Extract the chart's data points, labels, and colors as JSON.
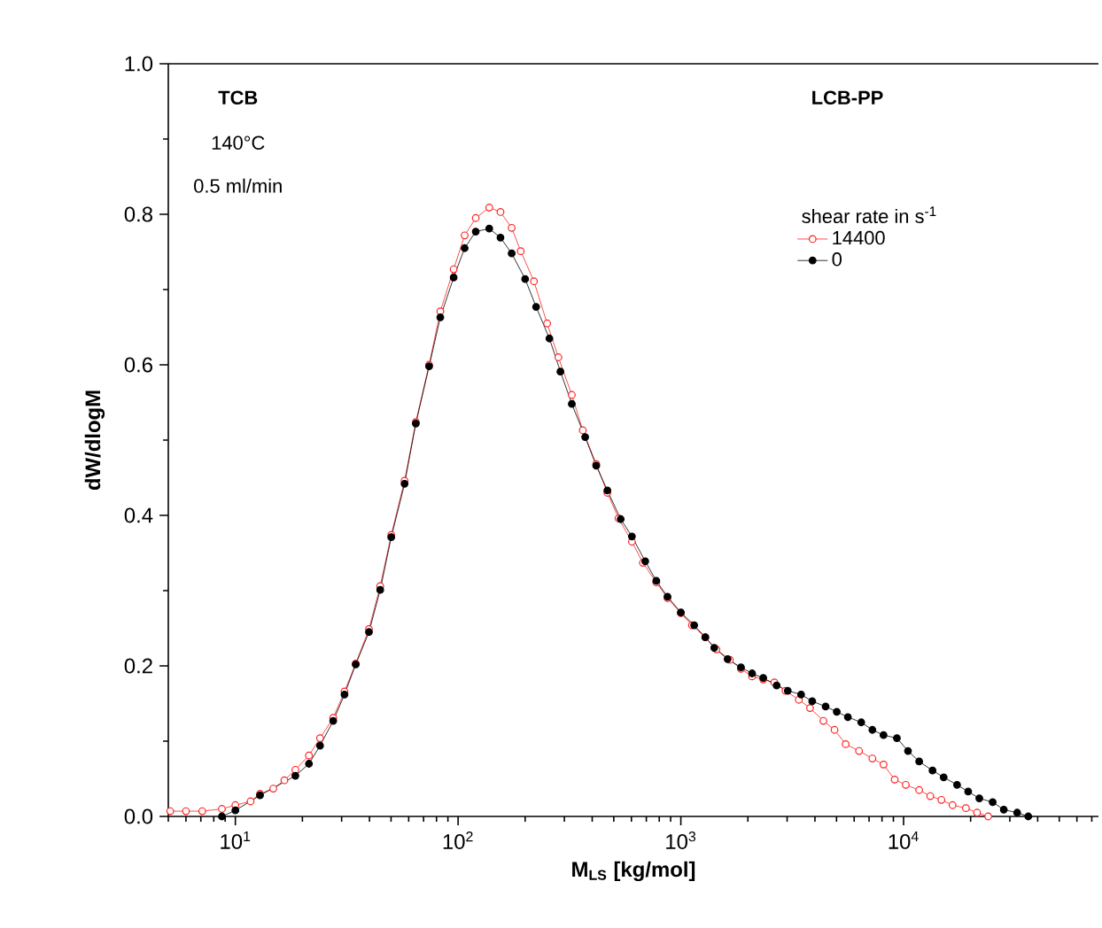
{
  "chart_data": {
    "type": "line",
    "xlabel": "M$_{LS}$ [kg/mol]",
    "ylabel": "dW/dlogM",
    "legend_title": "shear rate in s$^{-1}$",
    "log": "x",
    "marker": "circle",
    "line_style": "solid",
    "legend": "top right",
    "xlim": [
      5,
      75000
    ],
    "ylim": [
      0,
      1.0
    ],
    "xticks": [
      {
        "value": 10,
        "label": "10$^{1}$"
      },
      {
        "value": 100,
        "label": "10$^{2}$"
      },
      {
        "value": 1000,
        "label": "10$^{3}$"
      },
      {
        "value": 10000,
        "label": "10$^{4}$"
      }
    ],
    "yticks": [
      {
        "value": 0,
        "label": "0.0"
      },
      {
        "value": 0.2,
        "label": "0.2"
      },
      {
        "value": 0.4,
        "label": "0.4"
      },
      {
        "value": 0.6,
        "label": "0.6"
      },
      {
        "value": 0.8,
        "label": "0.8"
      },
      {
        "value": 1.0,
        "label": "1.0"
      }
    ],
    "annotations": [
      "TCB",
      "140°C",
      "0.5 ml/min",
      "LCB-PP"
    ],
    "series": [
      {
        "name": "14400",
        "color": "#ff2020",
        "x": [
          5.1,
          6.0,
          7.1,
          8.7,
          10,
          11.7,
          12.9,
          14.8,
          16.6,
          18.6,
          21.4,
          24,
          27.5,
          30.9,
          34.7,
          39.8,
          44.7,
          50.1,
          57.5,
          64.6,
          74.1,
          83.2,
          95.5,
          107,
          120,
          138,
          155,
          174,
          191,
          219,
          251,
          282,
          324,
          363,
          417,
          468,
          525,
          603,
          676,
          776,
          871,
          1000,
          1122,
          1288,
          1445,
          1660,
          1862,
          2089,
          2344,
          2630,
          2951,
          3388,
          3802,
          4365,
          4898,
          5495,
          6310,
          7244,
          8128,
          9120,
          10230,
          11750,
          13180,
          14790,
          16600,
          19050,
          21380,
          23990
        ],
        "values": [
          0.007,
          0.007,
          0.007,
          0.01,
          0.015,
          0.02,
          0.03,
          0.037,
          0.048,
          0.062,
          0.081,
          0.104,
          0.131,
          0.166,
          0.203,
          0.249,
          0.306,
          0.374,
          0.446,
          0.524,
          0.6,
          0.671,
          0.727,
          0.772,
          0.795,
          0.809,
          0.803,
          0.782,
          0.751,
          0.711,
          0.655,
          0.61,
          0.56,
          0.513,
          0.468,
          0.43,
          0.396,
          0.365,
          0.337,
          0.311,
          0.29,
          0.27,
          0.254,
          0.238,
          0.222,
          0.208,
          0.196,
          0.186,
          0.182,
          0.178,
          0.167,
          0.155,
          0.144,
          0.127,
          0.115,
          0.096,
          0.087,
          0.077,
          0.069,
          0.049,
          0.042,
          0.035,
          0.027,
          0.022,
          0.015,
          0.011,
          0.005,
          0.0
        ]
      },
      {
        "name": "0",
        "color": "#000000",
        "x": [
          8.7,
          10,
          12.9,
          18.6,
          21.4,
          24,
          27.5,
          30.9,
          34.7,
          39.8,
          44.7,
          50.1,
          57.5,
          64.6,
          74.1,
          83.2,
          95.5,
          107,
          120,
          138,
          155,
          174,
          200,
          224,
          257,
          288,
          324,
          372,
          417,
          468,
          537,
          603,
          692,
          776,
          871,
          1000,
          1148,
          1288,
          1413,
          1622,
          1862,
          2089,
          2344,
          2692,
          3020,
          3467,
          3890,
          4467,
          5012,
          5623,
          6457,
          7244,
          8128,
          9333,
          10470,
          11750,
          13490,
          15140,
          17380,
          19500,
          21880,
          25120,
          28180,
          32360,
          36310
        ],
        "values": [
          0.0,
          0.008,
          0.028,
          0.054,
          0.07,
          0.094,
          0.127,
          0.162,
          0.202,
          0.245,
          0.301,
          0.371,
          0.442,
          0.522,
          0.598,
          0.663,
          0.716,
          0.755,
          0.777,
          0.781,
          0.769,
          0.748,
          0.714,
          0.677,
          0.635,
          0.591,
          0.548,
          0.504,
          0.466,
          0.433,
          0.395,
          0.372,
          0.339,
          0.313,
          0.292,
          0.271,
          0.254,
          0.238,
          0.224,
          0.209,
          0.198,
          0.19,
          0.184,
          0.174,
          0.167,
          0.162,
          0.153,
          0.146,
          0.139,
          0.132,
          0.125,
          0.115,
          0.108,
          0.104,
          0.087,
          0.073,
          0.061,
          0.052,
          0.042,
          0.033,
          0.024,
          0.019,
          0.009,
          0.005,
          0.0
        ]
      }
    ]
  }
}
